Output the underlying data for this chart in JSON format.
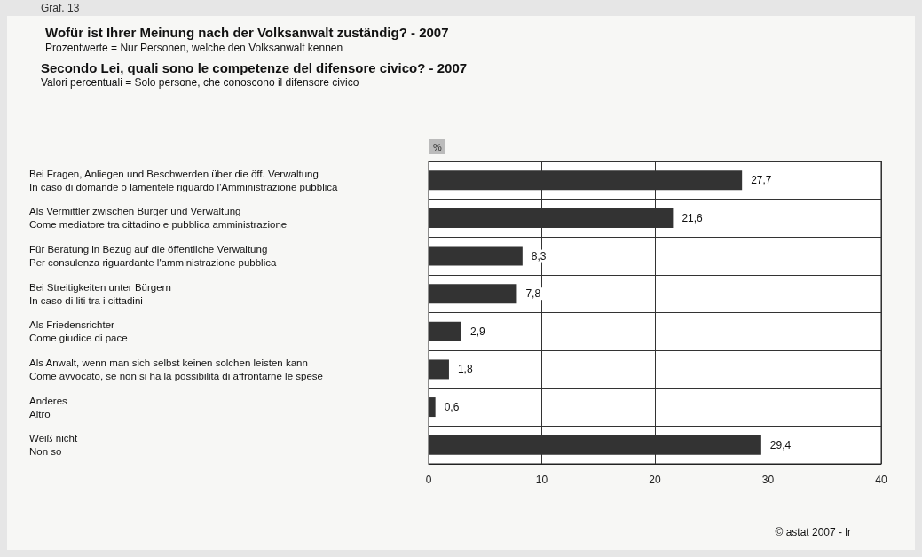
{
  "chart_data": {
    "type": "bar",
    "orientation": "horizontal",
    "title": "Wofür ist Ihrer Meinung nach der Volksanwalt zuständig? - 2007",
    "subtitle": "Prozentwerte = Nur Personen, welche den Volksanwalt kennen",
    "annotations": [
      "Graf. 13",
      "Secondo Lei, quali sono le competenze del difensore civico? - 2007",
      "Valori percentuali = Solo persone, che conoscono il difensore civico",
      "© astat 2007 - lr"
    ],
    "xlabel": "%",
    "categories": [
      "Bei Fragen, Anliegen und Beschwerden über die öff. Verwaltung\nIn caso di domande o lamentele riguardo l'Amministrazione pubblica",
      "Als Vermittler zwischen Bürger und Verwaltung\nCome mediatore tra cittadino e pubblica amministrazione",
      "Für Beratung in Bezug auf die öffentliche Verwaltung\nPer consulenza riguardante l'amministrazione pubblica",
      "Bei Streitigkeiten unter Bürgern\nIn caso di liti tra i cittadini",
      "Als Friedensrichter\nCome giudice di pace",
      "Als Anwalt, wenn man sich selbst keinen solchen leisten kann\nCome avvocato, se non si ha la possibilità di affrontarne le spese",
      "Anderes\nAltro",
      "Weiß nicht\nNon so"
    ],
    "values": [
      27.7,
      21.6,
      8.3,
      7.8,
      2.9,
      1.8,
      0.6,
      29.4
    ],
    "value_labels": [
      "27,7",
      "21,6",
      "8,3",
      "7,8",
      "2,9",
      "1,8",
      "0,6",
      "29,4"
    ],
    "color": "#333333",
    "xlim": [
      0,
      40
    ],
    "xticks": [
      0,
      10,
      20,
      30,
      40
    ],
    "grid": true
  }
}
